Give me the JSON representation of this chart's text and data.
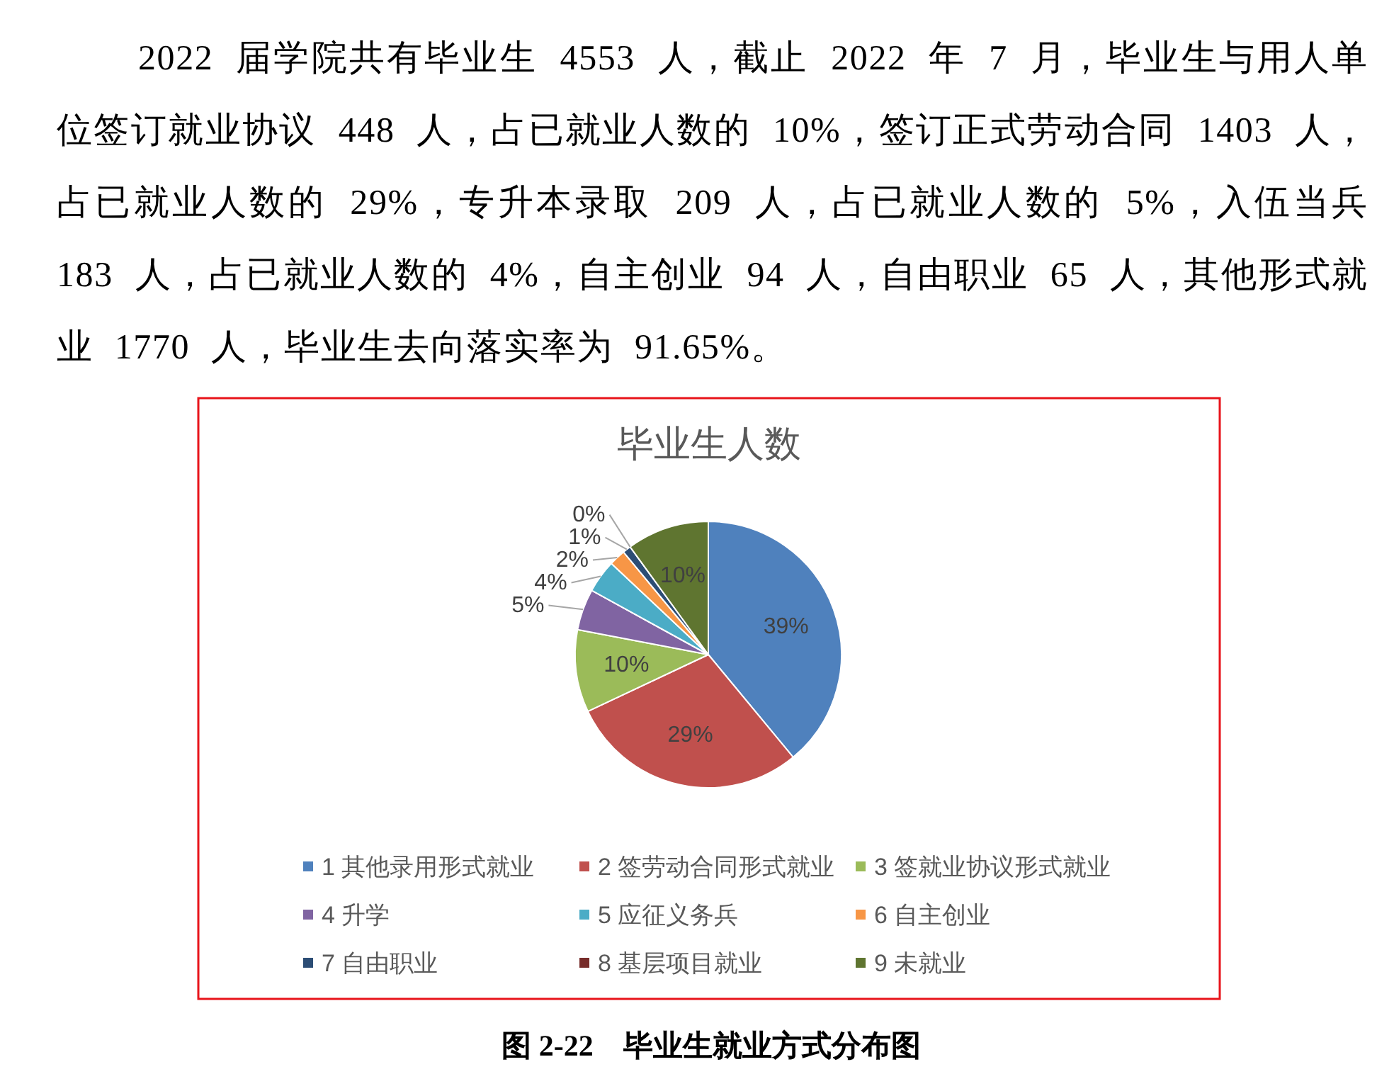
{
  "chart_data": {
    "type": "pie",
    "title": "毕业生人数",
    "categories": [
      "1 其他录用形式就业",
      "2 签劳动合同形式就业",
      "3 签就业协议形式就业",
      "4 升学",
      "5 应征义务兵",
      "6 自主创业",
      "7 自由职业",
      "8 基层项目就业",
      "9 未就业"
    ],
    "values": [
      39,
      29,
      10,
      5,
      4,
      2,
      1,
      0,
      10
    ],
    "value_labels": [
      "39%",
      "29%",
      "10%",
      "5%",
      "4%",
      "2%",
      "1%",
      "0%",
      "10%"
    ],
    "colors": [
      "#4f81bd",
      "#c0504d",
      "#9bbb59",
      "#8064a2",
      "#4bacc6",
      "#f79646",
      "#2c4d75",
      "#772c2a",
      "#5f7530"
    ],
    "legend": "bottom",
    "annotations": [
      "2022 届学院共有毕业生 4553 人，截止 2022 年 7 月，毕业生与用人单位签订就业协议 448 人，占已就业人数的 10%，签订正式劳动合同 1403 人，占已就业人数的 29%，专升本录取 209 人，占已就业人数的 5%，入伍当兵 183 人，占已就业人数的 4%，自主创业 94 人，自由职业 65 人，其他形式就业 1770 人，毕业生去向落实率为 91.65%。",
      "图 2-22　毕业生就业方式分布图"
    ]
  }
}
